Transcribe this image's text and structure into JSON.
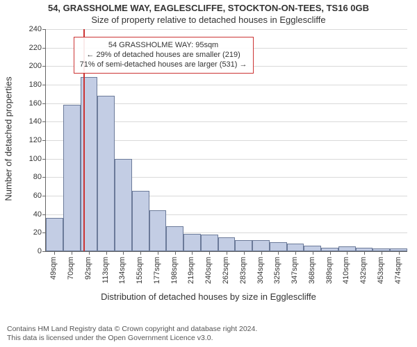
{
  "chart": {
    "type": "histogram",
    "title_line1": "54, GRASSHOLME WAY, EAGLESCLIFFE, STOCKTON-ON-TEES, TS16 0GB",
    "title_line2": "Size of property relative to detached houses in Egglescliffe",
    "title_fontsize": 13,
    "ylabel": "Number of detached properties",
    "xlabel": "Distribution of detached houses by size in Egglescliffe",
    "label_fontsize": 13,
    "y_ticks": [
      0,
      20,
      40,
      60,
      80,
      100,
      120,
      140,
      160,
      180,
      200,
      220,
      240
    ],
    "ymax": 240,
    "x_tick_labels": [
      "49sqm",
      "70sqm",
      "92sqm",
      "113sqm",
      "134sqm",
      "155sqm",
      "177sqm",
      "198sqm",
      "219sqm",
      "240sqm",
      "262sqm",
      "283sqm",
      "304sqm",
      "325sqm",
      "347sqm",
      "368sqm",
      "389sqm",
      "410sqm",
      "432sqm",
      "453sqm",
      "474sqm"
    ],
    "bar_values": [
      36,
      158,
      188,
      168,
      100,
      65,
      44,
      27,
      19,
      18,
      15,
      12,
      12,
      10,
      8,
      6,
      4,
      5,
      4,
      3,
      3
    ],
    "bar_fill": "#c3cde4",
    "bar_stroke": "#6b7a99",
    "grid_color": "#d9d9d9",
    "background_color": "#ffffff",
    "tick_fontsize": 11,
    "bar_width_ratio": 1.0,
    "reference_line": {
      "index_position": 2.2,
      "color": "#cc3333"
    },
    "annotation": {
      "lines": [
        "54 GRASSHOLME WAY: 95sqm",
        "← 29% of detached houses are smaller (219)",
        "71% of semi-detached houses are larger (531) →"
      ],
      "border_color": "#cc3333",
      "fontsize": 11,
      "left_bar_index": 1.6,
      "top_value": 232
    }
  },
  "footer": {
    "line1": "Contains HM Land Registry data © Crown copyright and database right 2024.",
    "line2": "This data is licensed under the Open Government Licence v3.0."
  }
}
